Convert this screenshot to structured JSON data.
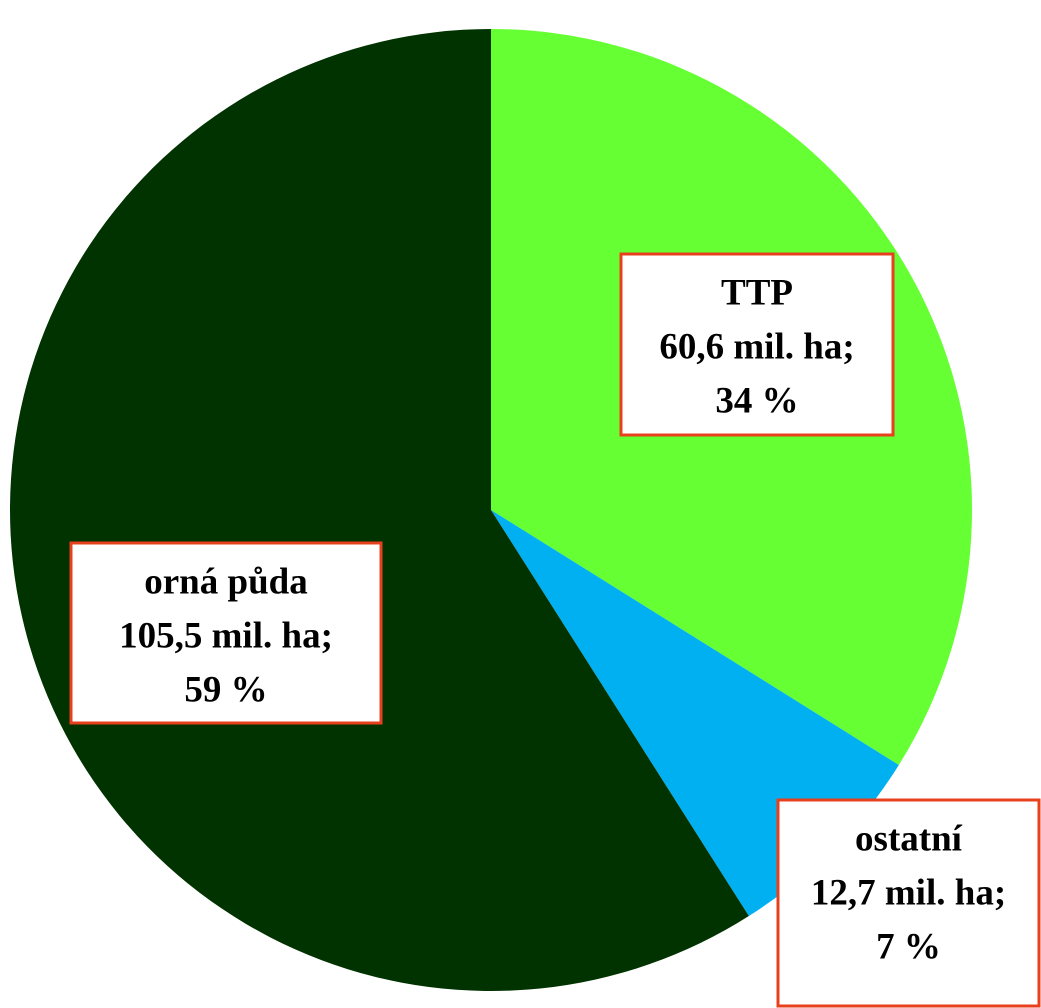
{
  "chart_data": {
    "type": "pie",
    "categories": [
      "TTP",
      "ostatní",
      "orná půda"
    ],
    "values": [
      60.6,
      12.7,
      105.5
    ],
    "value_labels": [
      "60,6 mil. ha;",
      "12,7 mil. ha;",
      "105,5 mil. ha;"
    ],
    "percents": [
      34,
      7,
      59
    ],
    "percent_labels": [
      "34 %",
      "7 %",
      "59 %"
    ],
    "colors": [
      "#66ff33",
      "#00b0f0",
      "#003300"
    ]
  }
}
